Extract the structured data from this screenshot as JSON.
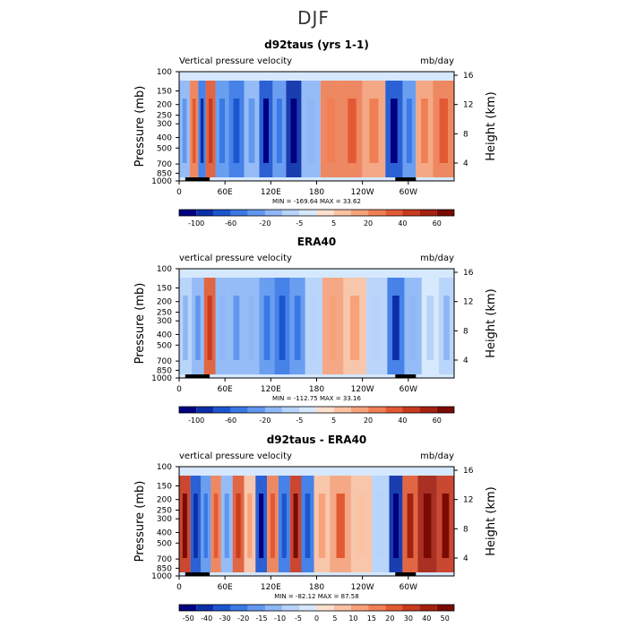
{
  "page_title": "DJF",
  "chart_data": [
    {
      "type": "heatmap",
      "title": "d92taus (yrs 1-1)",
      "left_string": "Vertical pressure velocity",
      "right_string": "mb/day",
      "ylabel": "Pressure (mb)",
      "y2label": "Height (km)",
      "y_ticks": [
        "100",
        "150",
        "200",
        "250",
        "300",
        "400",
        "500",
        "700",
        "850",
        "1000"
      ],
      "y2_ticks": [
        "4",
        "8",
        "12",
        "16"
      ],
      "x_ticks": [
        "0",
        "60E",
        "120E",
        "180",
        "120W",
        "60W"
      ],
      "stats": "MIN = -169.64   MAX =   33.62",
      "colorbar_labels": [
        "-100",
        "-60",
        "-20",
        "-5",
        "5",
        "20",
        "40",
        "60"
      ],
      "colorbar_colors": [
        "#000080",
        "#0a2fa8",
        "#1c55d0",
        "#3a78e6",
        "#6197ef",
        "#8fb7f6",
        "#b7d3fa",
        "#d6e8fd",
        "#fde0cf",
        "#fbc2a4",
        "#f7a27b",
        "#f07f55",
        "#e25a33",
        "#c93a1f",
        "#a5200f",
        "#7a0b04"
      ],
      "x_range": [
        0,
        360
      ],
      "y_range": [
        1000,
        100
      ],
      "regions": [
        {
          "x": 8,
          "v": -35
        },
        {
          "x": 20,
          "v": 15
        },
        {
          "x": 30,
          "v": -70
        },
        {
          "x": 40,
          "v": 25
        },
        {
          "x": 55,
          "v": -45
        },
        {
          "x": 75,
          "v": -60
        },
        {
          "x": 95,
          "v": -30
        },
        {
          "x": 115,
          "v": -90
        },
        {
          "x": 130,
          "v": -40
        },
        {
          "x": 150,
          "v": -110
        },
        {
          "x": 170,
          "v": -25
        },
        {
          "x": 200,
          "v": 12
        },
        {
          "x": 225,
          "v": 18
        },
        {
          "x": 255,
          "v": 10
        },
        {
          "x": 285,
          "v": -85
        },
        {
          "x": 300,
          "v": -40
        },
        {
          "x": 320,
          "v": 8
        },
        {
          "x": 345,
          "v": 15
        }
      ]
    },
    {
      "type": "heatmap",
      "title": "ERA40",
      "left_string": "vertical pressure velocity",
      "right_string": "mb/day",
      "ylabel": "Pressure (mb)",
      "y2label": "Height (km)",
      "y_ticks": [
        "100",
        "150",
        "200",
        "250",
        "300",
        "400",
        "500",
        "700",
        "850",
        "1000"
      ],
      "y2_ticks": [
        "4",
        "8",
        "12",
        "16"
      ],
      "x_ticks": [
        "0",
        "60E",
        "120E",
        "180",
        "120W",
        "60W"
      ],
      "stats": "MIN = -112.75   MAX =   33.16",
      "colorbar_labels": [
        "-100",
        "-60",
        "-20",
        "-5",
        "5",
        "20",
        "40",
        "60"
      ],
      "colorbar_colors": [
        "#000080",
        "#0a2fa8",
        "#1c55d0",
        "#3a78e6",
        "#6197ef",
        "#8fb7f6",
        "#b7d3fa",
        "#d6e8fd",
        "#fde0cf",
        "#fbc2a4",
        "#f7a27b",
        "#f07f55",
        "#e25a33",
        "#c93a1f",
        "#a5200f",
        "#7a0b04"
      ],
      "x_range": [
        0,
        360
      ],
      "y_range": [
        1000,
        100
      ],
      "regions": [
        {
          "x": 8,
          "v": -15
        },
        {
          "x": 25,
          "v": -30
        },
        {
          "x": 40,
          "v": 25
        },
        {
          "x": 55,
          "v": -20
        },
        {
          "x": 75,
          "v": -35
        },
        {
          "x": 95,
          "v": -25
        },
        {
          "x": 115,
          "v": -50
        },
        {
          "x": 135,
          "v": -60
        },
        {
          "x": 155,
          "v": -45
        },
        {
          "x": 175,
          "v": -12
        },
        {
          "x": 200,
          "v": 6
        },
        {
          "x": 230,
          "v": 4
        },
        {
          "x": 260,
          "v": -10
        },
        {
          "x": 285,
          "v": -70
        },
        {
          "x": 305,
          "v": -20
        },
        {
          "x": 330,
          "v": -8
        },
        {
          "x": 350,
          "v": -15
        }
      ]
    },
    {
      "type": "heatmap",
      "title": "d92taus - ERA40",
      "left_string": "vertical pressure velocity",
      "right_string": "mb/day",
      "ylabel": "Pressure (mb)",
      "y2label": "Height (km)",
      "y_ticks": [
        "100",
        "150",
        "200",
        "250",
        "300",
        "400",
        "500",
        "700",
        "850",
        "1000"
      ],
      "y2_ticks": [
        "4",
        "8",
        "12",
        "16"
      ],
      "x_ticks": [
        "0",
        "60E",
        "120E",
        "180",
        "120W",
        "60W"
      ],
      "stats": "MIN = -82.12   MAX =   87.58",
      "colorbar_labels": [
        "-50",
        "-40",
        "-30",
        "-20",
        "-15",
        "-10",
        "-5",
        "0",
        "5",
        "10",
        "15",
        "20",
        "30",
        "40",
        "50"
      ],
      "colorbar_colors": [
        "#000080",
        "#0a2fa8",
        "#1c55d0",
        "#3a78e6",
        "#6197ef",
        "#8fb7f6",
        "#b7d3fa",
        "#d6e8fd",
        "#fde0cf",
        "#fbc2a4",
        "#f7a27b",
        "#f07f55",
        "#e25a33",
        "#c93a1f",
        "#a5200f",
        "#7a0b04"
      ],
      "x_range": [
        0,
        360
      ],
      "y_range": [
        1000,
        100
      ],
      "regions": [
        {
          "x": 8,
          "v": 40
        },
        {
          "x": 22,
          "v": -30
        },
        {
          "x": 35,
          "v": -15
        },
        {
          "x": 48,
          "v": 20
        },
        {
          "x": 62,
          "v": -10
        },
        {
          "x": 78,
          "v": 25
        },
        {
          "x": 92,
          "v": 10
        },
        {
          "x": 108,
          "v": -35
        },
        {
          "x": 122,
          "v": 20
        },
        {
          "x": 138,
          "v": -25
        },
        {
          "x": 152,
          "v": 35
        },
        {
          "x": 168,
          "v": -20
        },
        {
          "x": 185,
          "v": 8
        },
        {
          "x": 210,
          "v": 15
        },
        {
          "x": 240,
          "v": 6
        },
        {
          "x": 265,
          "v": -5
        },
        {
          "x": 285,
          "v": -40
        },
        {
          "x": 300,
          "v": 30
        },
        {
          "x": 325,
          "v": 45
        },
        {
          "x": 350,
          "v": 35
        }
      ]
    }
  ]
}
